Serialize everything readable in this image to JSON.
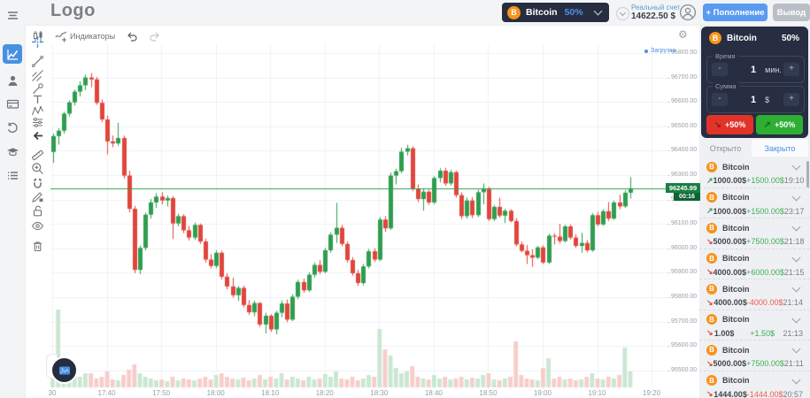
{
  "topbar": {
    "logo": "Logo",
    "asset_selector": {
      "name": "Bitcoin",
      "payout": "50%"
    },
    "account": {
      "label": "Реальный счет",
      "balance": "14622.50 $"
    },
    "deposit_label": "+ Пополнение",
    "withdraw_label": "Вывод"
  },
  "sidebar": {
    "icons": [
      "menu",
      "chart",
      "profile",
      "payments",
      "history",
      "education",
      "orders"
    ]
  },
  "chart_toolbar": {
    "indicators_label": "Индикаторы",
    "tools": [
      "crosshair",
      "trendline",
      "fib-lines",
      "brush",
      "text",
      "pattern",
      "sliders",
      "arrow",
      "ruler",
      "zoom-in",
      "magnet",
      "drawing-edit",
      "lock",
      "eye",
      "trash"
    ]
  },
  "chart_legend": {
    "label": "Загрузка"
  },
  "price_tag": {
    "price": "96245.99",
    "countdown": "00:16"
  },
  "trade_panel": {
    "asset": "Bitcoin",
    "payout": "50%",
    "time": {
      "label": "Время",
      "value": "1",
      "unit": "мин.",
      "minus": "-",
      "plus": "+"
    },
    "amount": {
      "label": "Сумма",
      "value": "1",
      "unit": "$",
      "minus": "-",
      "plus": "+"
    },
    "down_label": "+50%",
    "up_label": "+50%"
  },
  "tabs": {
    "open": "Открыто",
    "closed": "Закрыто"
  },
  "trades": [
    {
      "asset": "Bitcoin",
      "direction": "up",
      "amount": "1000.00$",
      "profit": "+1500.00$",
      "time": "19:10"
    },
    {
      "asset": "Bitcoin",
      "direction": "up",
      "amount": "1000.00$",
      "profit": "+1500.00$",
      "time": "23:17"
    },
    {
      "asset": "Bitcoin",
      "direction": "down",
      "amount": "5000.00$",
      "profit": "+7500.00$",
      "time": "21:18"
    },
    {
      "asset": "Bitcoin",
      "direction": "down",
      "amount": "4000.00$",
      "profit": "+6000.00$",
      "time": "21:15"
    },
    {
      "asset": "Bitcoin",
      "direction": "down",
      "amount": "4000.00$",
      "profit": "-4000.00$",
      "time": "21:14"
    },
    {
      "asset": "Bitcoin",
      "direction": "down",
      "amount": "1.00$",
      "profit": "+1.50$",
      "time": "21:13"
    },
    {
      "asset": "Bitcoin",
      "direction": "down",
      "amount": "5000.00$",
      "profit": "+7500.00$",
      "time": "21:11"
    },
    {
      "asset": "Bitcoin",
      "direction": "down",
      "amount": "1444.00$",
      "profit": "-1444.00$",
      "time": "20:57"
    }
  ],
  "chart_data": {
    "type": "candlestick",
    "symbol": "Bitcoin",
    "interval_minutes": 1,
    "start_time": "17:30",
    "current_price": 96245.99,
    "y_max": 96800,
    "y_min": 95500,
    "grid": true,
    "y_ticks": [
      "96800.00",
      "96700.00",
      "96600.00",
      "96500.00",
      "96400.00",
      "96300.00",
      "96200.00",
      "96100.00",
      "96000.00",
      "95900.00",
      "95800.00",
      "95700.00",
      "95600.00",
      "95500.00"
    ],
    "x_ticks": [
      "30",
      "17:40",
      "17:50",
      "18:00",
      "18:10",
      "18:20",
      "18:30",
      "18:40",
      "18:50",
      "19:00",
      "19:10",
      "19:20"
    ],
    "candles": [
      [
        96395,
        96470,
        96350,
        96460
      ],
      [
        96460,
        96492,
        96425,
        96482
      ],
      [
        96482,
        96560,
        96470,
        96552
      ],
      [
        96552,
        96606,
        96540,
        96598
      ],
      [
        96598,
        96650,
        96585,
        96642
      ],
      [
        96642,
        96684,
        96622,
        96668
      ],
      [
        96668,
        96712,
        96648,
        96700
      ],
      [
        96700,
        96718,
        96660,
        96692
      ],
      [
        96692,
        96702,
        96588,
        96596
      ],
      [
        96596,
        96610,
        96518,
        96528
      ],
      [
        96528,
        96544,
        96385,
        96438
      ],
      [
        96438,
        96462,
        96414,
        96430
      ],
      [
        96430,
        96514,
        96420,
        96452
      ],
      [
        96452,
        96462,
        96286,
        96298
      ],
      [
        96298,
        96318,
        96148,
        96162
      ],
      [
        96162,
        96174,
        95898,
        95912
      ],
      [
        95912,
        96012,
        95894,
        96002
      ],
      [
        96002,
        96146,
        95992,
        96138
      ],
      [
        96138,
        96202,
        96122,
        96188
      ],
      [
        96188,
        96226,
        96166,
        96212
      ],
      [
        96212,
        96230,
        96180,
        96196
      ],
      [
        96196,
        96216,
        96172,
        96206
      ],
      [
        96206,
        96214,
        96038,
        96102
      ],
      [
        96102,
        96142,
        96090,
        96132
      ],
      [
        96132,
        96140,
        96062,
        96074
      ],
      [
        96074,
        96092,
        96032,
        96044
      ],
      [
        96044,
        96106,
        96034,
        96096
      ],
      [
        96096,
        96102,
        96018,
        96028
      ],
      [
        96028,
        96040,
        95942,
        95954
      ],
      [
        95954,
        95976,
        95918,
        95928
      ],
      [
        95928,
        95992,
        95918,
        95982
      ],
      [
        95982,
        95990,
        95872,
        95884
      ],
      [
        95884,
        95898,
        95832,
        95844
      ],
      [
        95844,
        95880,
        95798,
        95808
      ],
      [
        95808,
        95846,
        95784,
        95838
      ],
      [
        95838,
        95848,
        95758,
        95768
      ],
      [
        95768,
        95788,
        95728,
        95738
      ],
      [
        95738,
        95786,
        95722,
        95776
      ],
      [
        95776,
        95780,
        95678,
        95688
      ],
      [
        95688,
        95736,
        95652,
        95724
      ],
      [
        95724,
        95730,
        95658,
        95668
      ],
      [
        95668,
        95744,
        95648,
        95736
      ],
      [
        95736,
        95786,
        95718,
        95774
      ],
      [
        95774,
        95790,
        95698,
        95708
      ],
      [
        95708,
        95812,
        95702,
        95802
      ],
      [
        95802,
        95872,
        95792,
        95862
      ],
      [
        95862,
        95876,
        95818,
        95828
      ],
      [
        95828,
        95902,
        95822,
        95892
      ],
      [
        95892,
        95942,
        95880,
        95932
      ],
      [
        95932,
        95952,
        95894,
        95904
      ],
      [
        95904,
        96002,
        95898,
        95992
      ],
      [
        95992,
        96066,
        95982,
        96056
      ],
      [
        96056,
        96186,
        96022,
        96084
      ],
      [
        96084,
        96096,
        96008,
        96018
      ],
      [
        96018,
        96028,
        95942,
        95952
      ],
      [
        95952,
        95964,
        95888,
        95898
      ],
      [
        95898,
        95912,
        95846,
        95858
      ],
      [
        95858,
        95936,
        95848,
        95926
      ],
      [
        95926,
        95998,
        95918,
        95988
      ],
      [
        95988,
        96000,
        95944,
        95954
      ],
      [
        95954,
        96128,
        95948,
        96118
      ],
      [
        96118,
        96132,
        96068,
        96082
      ],
      [
        96082,
        96310,
        96076,
        96298
      ],
      [
        96298,
        96326,
        96262,
        96316
      ],
      [
        96316,
        96412,
        96308,
        96396
      ],
      [
        96396,
        96424,
        96380,
        96410
      ],
      [
        96410,
        96418,
        96234,
        96242
      ],
      [
        96242,
        96262,
        96190,
        96202
      ],
      [
        96202,
        96244,
        96154,
        96232
      ],
      [
        96232,
        96240,
        96178,
        96188
      ],
      [
        96188,
        96296,
        96180,
        96288
      ],
      [
        96288,
        96328,
        96270,
        96318
      ],
      [
        96318,
        96330,
        96256,
        96266
      ],
      [
        96266,
        96322,
        96258,
        96312
      ],
      [
        96312,
        96318,
        96208,
        96218
      ],
      [
        96218,
        96230,
        96120,
        96132
      ],
      [
        96132,
        96208,
        96122,
        96196
      ],
      [
        96196,
        96210,
        96124,
        96136
      ],
      [
        96136,
        96240,
        96128,
        96230
      ],
      [
        96230,
        96266,
        96180,
        96246
      ],
      [
        96246,
        96252,
        96112,
        96120
      ],
      [
        96120,
        96178,
        96112,
        96170
      ],
      [
        96170,
        96208,
        96126,
        96134
      ],
      [
        96134,
        96162,
        96104,
        96154
      ],
      [
        96154,
        96160,
        96106,
        96112
      ],
      [
        96112,
        96124,
        96008,
        96016
      ],
      [
        96016,
        96028,
        95984,
        95990
      ],
      [
        95990,
        96014,
        95936,
        95972
      ],
      [
        95972,
        95996,
        95924,
        95962
      ],
      [
        95962,
        96010,
        95956,
        96004
      ],
      [
        96004,
        96012,
        95936,
        95942
      ],
      [
        95942,
        96060,
        95936,
        96052
      ],
      [
        96052,
        96062,
        96016,
        96048
      ],
      [
        96048,
        96100,
        96020,
        96030
      ],
      [
        96030,
        96096,
        96024,
        96090
      ],
      [
        96090,
        96098,
        96036,
        96044
      ],
      [
        96044,
        96058,
        96002,
        96010
      ],
      [
        96010,
        96064,
        95982,
        96022
      ],
      [
        96022,
        96034,
        95984,
        95992
      ],
      [
        95992,
        96144,
        95986,
        96136
      ],
      [
        96136,
        96150,
        96090,
        96098
      ],
      [
        96098,
        96160,
        96092,
        96152
      ],
      [
        96152,
        96190,
        96112,
        96122
      ],
      [
        96122,
        96196,
        96116,
        96188
      ],
      [
        96188,
        96220,
        96160,
        96172
      ],
      [
        96172,
        96238,
        96166,
        96228
      ],
      [
        96228,
        96292,
        96204,
        96246
      ]
    ],
    "volumes": [
      22,
      88,
      34,
      18,
      14,
      12,
      16,
      16,
      10,
      12,
      18,
      9,
      8,
      14,
      20,
      26,
      16,
      12,
      10,
      8,
      9,
      7,
      12,
      8,
      10,
      9,
      8,
      10,
      12,
      9,
      14,
      16,
      12,
      10,
      9,
      11,
      8,
      10,
      14,
      9,
      12,
      10,
      16,
      9,
      12,
      10,
      8,
      12,
      9,
      10,
      15,
      12,
      18,
      10,
      9,
      12,
      8,
      10,
      14,
      12,
      66,
      43,
      36,
      22,
      16,
      18,
      24,
      12,
      10,
      9,
      14,
      10,
      12,
      9,
      10,
      12,
      9,
      11,
      10,
      14,
      16,
      9,
      8,
      10,
      12,
      52,
      14,
      10,
      9,
      8,
      22,
      33,
      10,
      12,
      9,
      10,
      8,
      9,
      12,
      16,
      10,
      9,
      12,
      10,
      14,
      45,
      18
    ],
    "colors": {
      "up": "#2e9e4f",
      "down": "#e0453c",
      "vol_up": "#c9e7d2",
      "vol_down": "#f7cdc9",
      "grid": "#eff1f4",
      "price_line": "#2e9e4f"
    }
  }
}
